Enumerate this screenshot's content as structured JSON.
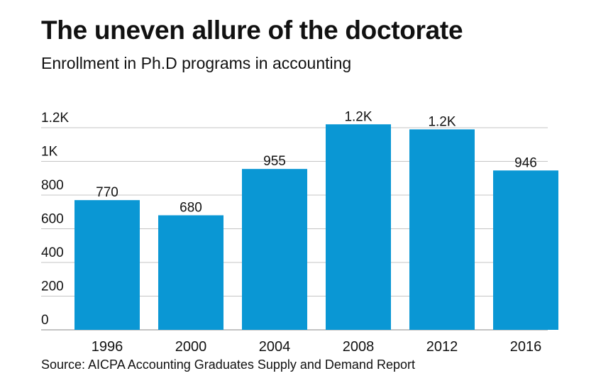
{
  "header": {
    "title": "The uneven allure of the doctorate",
    "subtitle": "Enrollment in Ph.D programs in accounting"
  },
  "footer": {
    "source": "Source: AICPA Accounting Graduates Supply and Demand Report"
  },
  "colors": {
    "bar": "#0a97d4",
    "grid": "#c4c4c4",
    "text": "#111111"
  },
  "chart_data": {
    "type": "bar",
    "title": "The uneven allure of the doctorate",
    "subtitle": "Enrollment in Ph.D programs in accounting",
    "xlabel": "",
    "ylabel": "",
    "categories": [
      "1996",
      "2000",
      "2004",
      "2008",
      "2012",
      "2016"
    ],
    "values": [
      770,
      680,
      955,
      1220,
      1190,
      946
    ],
    "data_labels": [
      "770",
      "680",
      "955",
      "1.2K",
      "1.2K",
      "946"
    ],
    "ylim": [
      0,
      1200
    ],
    "yticks": [
      0,
      200,
      400,
      600,
      800,
      1000,
      1200
    ],
    "ytick_labels": [
      "0",
      "200",
      "400",
      "600",
      "800",
      "1K",
      "1.2K"
    ],
    "grid": true,
    "legend": "none"
  }
}
